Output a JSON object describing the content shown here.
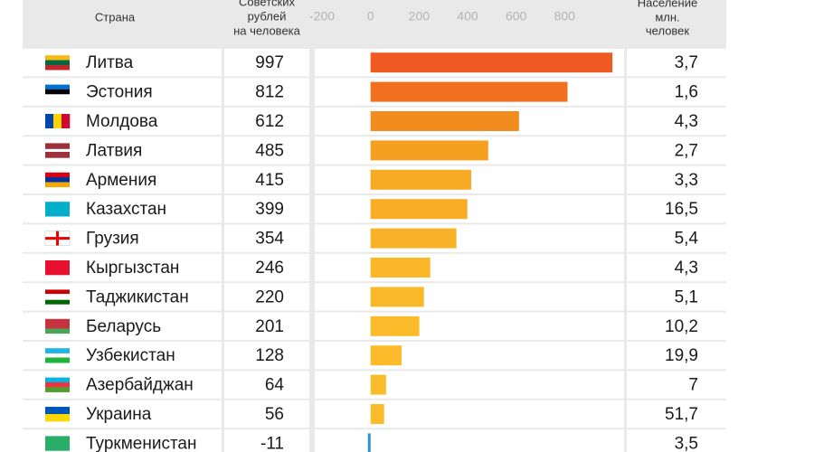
{
  "chart_data": {
    "type": "bar",
    "country_header": "Страна",
    "value_header": [
      "Советских",
      "рублей",
      "на человека"
    ],
    "population_header": [
      "Население",
      "млн.",
      "человек"
    ],
    "categories": [
      "Литва",
      "Эстония",
      "Молдова",
      "Латвия",
      "Армения",
      "Казахстан",
      "Грузия",
      "Кыргызстан",
      "Таджикистан",
      "Беларусь",
      "Узбекистан",
      "Азербайджан",
      "Украина",
      "Туркменистан"
    ],
    "values": [
      997,
      812,
      612,
      485,
      415,
      399,
      354,
      246,
      220,
      201,
      128,
      64,
      56,
      -11
    ],
    "colors": [
      "#ef5a23",
      "#f0701f",
      "#f28c1f",
      "#f5a021",
      "#f7ab24",
      "#f8ad25",
      "#f9b227",
      "#fab828",
      "#fab929",
      "#fbba2a",
      "#fbbb2b",
      "#fbbc2b",
      "#fbbc2b",
      "#2f8fd8"
    ],
    "population": [
      "3,7",
      "1,6",
      "4,3",
      "2,7",
      "3,3",
      "16,5",
      "5,4",
      "4,3",
      "5,1",
      "10,2",
      "19,9",
      "7",
      "51,7",
      "3,5"
    ],
    "xlim": [
      -230,
      1045
    ],
    "xticks": [
      -200,
      0,
      200,
      400,
      600,
      800
    ]
  }
}
